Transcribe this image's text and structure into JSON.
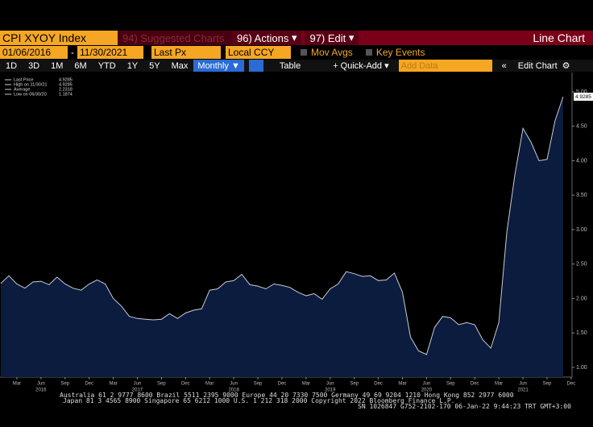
{
  "toolbar": {
    "ticker": "CPI XYOY Index",
    "suggested": "94) Suggested Charts",
    "actions": "96) Actions",
    "edit": "97) Edit",
    "chart_kind": "Line Chart",
    "start_date": "01/06/2016",
    "dash": "-",
    "end_date": "11/30/2021",
    "field": "Last Px",
    "currency": "Local CCY",
    "mov_avgs": "Mov Avgs",
    "key_events": "Key Events",
    "ranges": [
      "1D",
      "3D",
      "1M",
      "6M",
      "YTD",
      "1Y",
      "5Y",
      "Max"
    ],
    "period": "Monthly",
    "table": "Table",
    "quick_add": "+ Quick-Add",
    "add_data": "Add Data",
    "edit_chart": "Edit Chart"
  },
  "chart_data": {
    "type": "area",
    "color": "#0b1c3f",
    "line_color": "#c8ccd4",
    "legend": [
      {
        "label": "Last Price",
        "value": 4.9285
      },
      {
        "label": "High on 11/30/21",
        "value": 4.9285
      },
      {
        "label": "Average",
        "value": 2.2318
      },
      {
        "label": "Low on 06/30/20",
        "value": 1.1874
      }
    ],
    "x": [
      "2016-01",
      "2016-02",
      "2016-03",
      "2016-04",
      "2016-05",
      "2016-06",
      "2016-07",
      "2016-08",
      "2016-09",
      "2016-10",
      "2016-11",
      "2016-12",
      "2017-01",
      "2017-02",
      "2017-03",
      "2017-04",
      "2017-05",
      "2017-06",
      "2017-07",
      "2017-08",
      "2017-09",
      "2017-10",
      "2017-11",
      "2017-12",
      "2018-01",
      "2018-02",
      "2018-03",
      "2018-04",
      "2018-05",
      "2018-06",
      "2018-07",
      "2018-08",
      "2018-09",
      "2018-10",
      "2018-11",
      "2018-12",
      "2019-01",
      "2019-02",
      "2019-03",
      "2019-04",
      "2019-05",
      "2019-06",
      "2019-07",
      "2019-08",
      "2019-09",
      "2019-10",
      "2019-11",
      "2019-12",
      "2020-01",
      "2020-02",
      "2020-03",
      "2020-04",
      "2020-05",
      "2020-06",
      "2020-07",
      "2020-08",
      "2020-09",
      "2020-10",
      "2020-11",
      "2020-12",
      "2021-01",
      "2021-02",
      "2021-03",
      "2021-04",
      "2021-05",
      "2021-06",
      "2021-07",
      "2021-08",
      "2021-09",
      "2021-10",
      "2021-11"
    ],
    "values": [
      2.22,
      2.33,
      2.21,
      2.15,
      2.24,
      2.25,
      2.2,
      2.31,
      2.21,
      2.15,
      2.12,
      2.21,
      2.27,
      2.21,
      2.0,
      1.89,
      1.74,
      1.71,
      1.7,
      1.69,
      1.7,
      1.78,
      1.71,
      1.79,
      1.83,
      1.85,
      2.12,
      2.14,
      2.24,
      2.26,
      2.35,
      2.2,
      2.18,
      2.14,
      2.21,
      2.19,
      2.16,
      2.09,
      2.04,
      2.07,
      1.99,
      2.14,
      2.21,
      2.39,
      2.36,
      2.32,
      2.33,
      2.26,
      2.27,
      2.37,
      2.09,
      1.44,
      1.24,
      1.1874,
      1.58,
      1.74,
      1.72,
      1.62,
      1.65,
      1.62,
      1.4,
      1.28,
      1.65,
      2.97,
      3.8,
      4.47,
      4.27,
      4.0,
      4.02,
      4.58,
      4.9285
    ],
    "ylim": [
      0.86,
      5.28
    ],
    "yticks": [
      {
        "value": 1,
        "label": "1.00"
      },
      {
        "value": 1.5,
        "label": "1.50"
      },
      {
        "value": 2,
        "label": "2.00"
      },
      {
        "value": 2.5,
        "label": "2.50"
      },
      {
        "value": 3,
        "label": "3.00"
      },
      {
        "value": 3.5,
        "label": "3.50"
      },
      {
        "value": 4,
        "label": "4.00"
      },
      {
        "value": 4.5,
        "label": "4.50"
      },
      {
        "value": 5,
        "label": "5.00"
      }
    ],
    "xticks": [
      {
        "value": "2016-03",
        "label": "Mar"
      },
      {
        "value": "2016-06",
        "label": "Jun"
      },
      {
        "value": "2016-09",
        "label": "Sep"
      },
      {
        "value": "2016-12",
        "label": "Dec"
      },
      {
        "value": "2017-03",
        "label": "Mar"
      },
      {
        "value": "2017-06",
        "label": "Jun"
      },
      {
        "value": "2017-09",
        "label": "Sep"
      },
      {
        "value": "2017-12",
        "label": "Dec"
      },
      {
        "value": "2018-03",
        "label": "Mar"
      },
      {
        "value": "2018-06",
        "label": "Jun"
      },
      {
        "value": "2018-09",
        "label": "Sep"
      },
      {
        "value": "2018-12",
        "label": "Dec"
      },
      {
        "value": "2019-03",
        "label": "Mar"
      },
      {
        "value": "2019-06",
        "label": "Jun"
      },
      {
        "value": "2019-09",
        "label": "Sep"
      },
      {
        "value": "2019-12",
        "label": "Dec"
      },
      {
        "value": "2020-03",
        "label": "Mar"
      },
      {
        "value": "2020-06",
        "label": "Jun"
      },
      {
        "value": "2020-09",
        "label": "Sep"
      },
      {
        "value": "2020-12",
        "label": "Dec"
      },
      {
        "value": "2021-03",
        "label": "Mar"
      },
      {
        "value": "2021-06",
        "label": "Jun"
      },
      {
        "value": "2021-09",
        "label": "Sep"
      },
      {
        "value": "2021-12",
        "label": "Dec"
      }
    ],
    "xyears": [
      {
        "value": "2016-06",
        "label": "2016"
      },
      {
        "value": "2017-06",
        "label": "2017"
      },
      {
        "value": "2018-06",
        "label": "2018"
      },
      {
        "value": "2019-06",
        "label": "2019"
      },
      {
        "value": "2020-06",
        "label": "2020"
      },
      {
        "value": "2021-06",
        "label": "2021"
      }
    ]
  },
  "footer": [
    "Australia 61 2 9777 8600 Brazil 5511 2395 9000 Europe 44 20 7330 7500 Germany 49 69 9204 1210 Hong Kong 852 2977 6000",
    "Japan 81 3 4565 8900        Singapore 65 6212 1000        U.S. 1 212 318 2000        Copyright 2022 Bloomberg Finance L.P.",
    "SN 1026847 G752-2102-170 06-Jan-22  9:44:23 TRT  GMT+3:00"
  ]
}
